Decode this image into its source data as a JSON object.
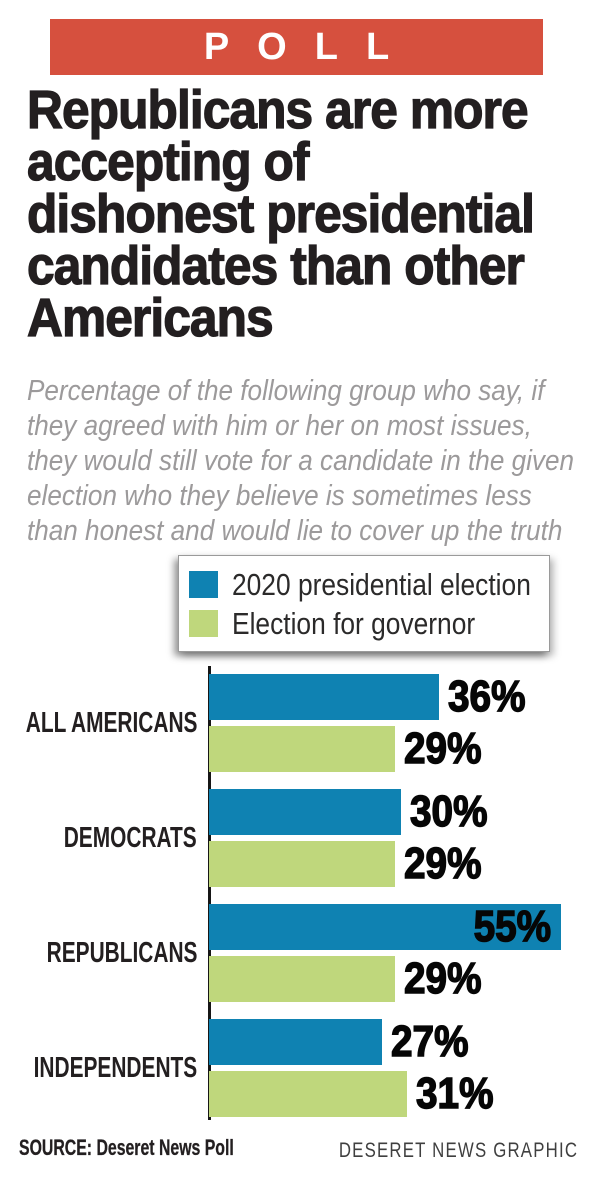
{
  "banner": {
    "label": "POLL"
  },
  "headline": "Republicans are more\naccepting of\ndishonest presidential\ncandidates than other\nAmericans",
  "subtitle": "Percentage of the following group who say, if\nthey agreed with him or her on most issues,\nthey would still vote for a candidate in the given\nelection who they believe is sometimes less\nthan honest and would lie to cover up the truth",
  "legend": {
    "items": [
      {
        "label": "2020 presidential election",
        "color": "#0F82B2"
      },
      {
        "label": "Election for governor",
        "color": "#BFD77C"
      }
    ]
  },
  "chart_data": {
    "type": "bar",
    "orientation": "horizontal",
    "title": "Republicans are more accepting of dishonest presidential candidates than other Americans",
    "categories": [
      "ALL AMERICANS",
      "DEMOCRATS",
      "REPUBLICANS",
      "INDEPENDENTS"
    ],
    "series": [
      {
        "name": "2020 presidential election",
        "color": "#0F82B2",
        "values": [
          36,
          30,
          55,
          27
        ]
      },
      {
        "name": "Election for governor",
        "color": "#BFD77C",
        "values": [
          29,
          29,
          29,
          31
        ]
      }
    ],
    "value_suffix": "%",
    "xlim": [
      0,
      61
    ],
    "grid": false,
    "legend_position": "top",
    "data_labels": true
  },
  "footer": {
    "source": "SOURCE: Deseret News Poll",
    "credit": "DESERET NEWS GRAPHIC"
  },
  "colors": {
    "banner_red": "#D6503E",
    "headline_black": "#231F20",
    "subtitle_gray": "#9C9A9B",
    "bar_blue": "#0F82B2",
    "bar_green": "#BFD77C",
    "value_label_black": "#060606",
    "axis_black": "#161616"
  }
}
